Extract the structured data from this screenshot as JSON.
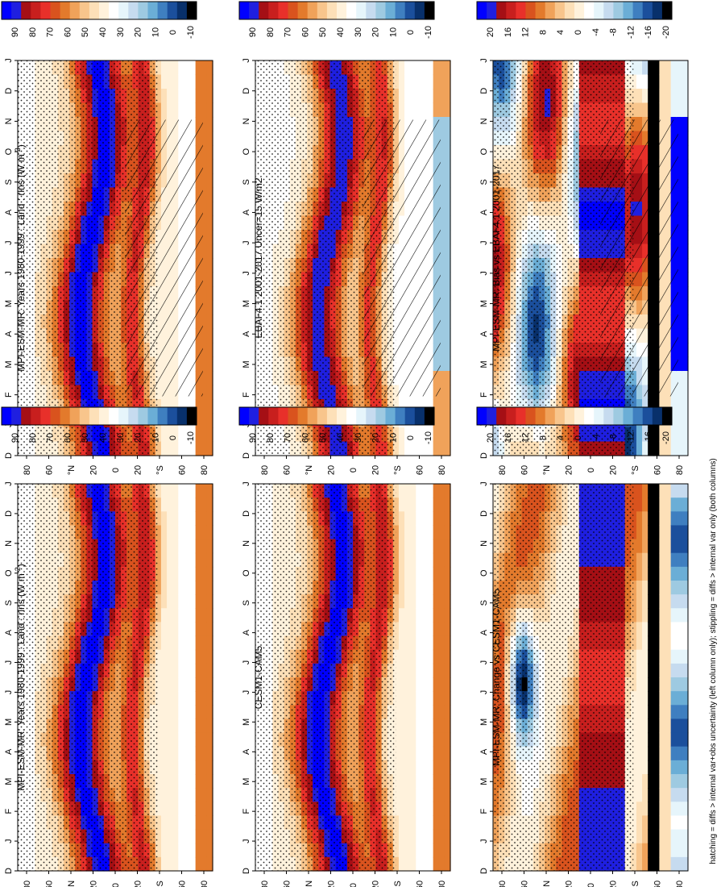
{
  "figure": {
    "footnote": "hatching = diffs > internal var+obs uncertainty (left column only); stippling = diffs > internal var only (both columns)",
    "latitude_axis": {
      "ticks": [
        "80",
        "60",
        "°N",
        "20",
        "0",
        "20",
        "°S",
        "60",
        "80"
      ],
      "values": [
        80,
        60,
        40,
        20,
        0,
        -20,
        -40,
        -60,
        -80
      ]
    },
    "month_axis": {
      "ticks": [
        "D",
        "J",
        "F",
        "M",
        "A",
        "M",
        "J",
        "J",
        "A",
        "S",
        "O",
        "N",
        "D",
        "J"
      ]
    }
  },
  "colors": {
    "absolute_scale": [
      "#000000",
      "#08306b",
      "#1b4f9c",
      "#3f7fc0",
      "#6baed6",
      "#9ecae1",
      "#c6dbef",
      "#e6f5fb",
      "#ffffff",
      "#fff2dc",
      "#fde0b8",
      "#f8c58c",
      "#f0a25a",
      "#e37a2c",
      "#d9531e",
      "#e8302a",
      "#c81f1e",
      "#a50f15",
      "#1f1fe0",
      "#0000ff"
    ],
    "difference_scale": [
      "#000000",
      "#08306b",
      "#1b4f9c",
      "#3f7fc0",
      "#6baed6",
      "#9ecae1",
      "#c6dbef",
      "#e6f5fb",
      "#ffffff",
      "#fff2dc",
      "#fde0b8",
      "#f8c58c",
      "#f0a25a",
      "#e37a2c",
      "#d9531e",
      "#e8302a",
      "#c81f1e",
      "#a50f15",
      "#1f1fe0",
      "#0000ff"
    ]
  },
  "chart_data": [
    {
      "id": "mpi_left",
      "type": "heatmap",
      "title": "MPI-ESM-MR: Years 1980-1999 : Land : rlns (W m",
      "title_superscript": "-2",
      "title_suffix": ")",
      "colorbar": {
        "labels": [
          "90",
          "80",
          "70",
          "60",
          "50",
          "40",
          "30",
          "20",
          "10",
          "0",
          "-10"
        ],
        "range": [
          -10,
          100
        ]
      },
      "field": "absolute",
      "hatching": true
    },
    {
      "id": "mpi_right",
      "type": "heatmap",
      "title": "MPI-ESM-MR: Years 1980-1999 : Land : rlns (W m",
      "title_superscript": "-2",
      "title_suffix": ")",
      "colorbar": {
        "labels": [
          "90",
          "80",
          "70",
          "60",
          "50",
          "40",
          "30",
          "20",
          "10",
          "0",
          "-10"
        ],
        "range": [
          -10,
          100
        ]
      },
      "field": "absolute",
      "hatching": false
    },
    {
      "id": "ebaf",
      "type": "heatmap",
      "title": "EBAF4.1 2001-2017 Uncer=15 W/m2",
      "colorbar": {
        "labels": [
          "90",
          "80",
          "70",
          "60",
          "50",
          "40",
          "30",
          "20",
          "10",
          "0",
          "-10"
        ],
        "range": [
          -10,
          100
        ]
      },
      "field": "absolute_obs",
      "hatching": true
    },
    {
      "id": "cesm",
      "type": "heatmap",
      "title": "CESM1-CAM5",
      "colorbar": {
        "labels": [
          "90",
          "80",
          "70",
          "60",
          "50",
          "40",
          "30",
          "20",
          "10",
          "0",
          "-10"
        ],
        "range": [
          -10,
          100
        ]
      },
      "field": "absolute",
      "hatching": false
    },
    {
      "id": "bias",
      "type": "heatmap",
      "title": "MPI-ESM-MR: Bias vs EBAF4.1 2001-2017",
      "colorbar": {
        "labels": [
          "20",
          "16",
          "12",
          "8",
          "4",
          "0",
          "-4",
          "-8",
          "-12",
          "-16",
          "-20"
        ],
        "range": [
          -22,
          22
        ]
      },
      "field": "bias",
      "hatching": true
    },
    {
      "id": "change",
      "type": "heatmap",
      "title": "MPI-ESM-MR: Change vs CESM1-CAM5",
      "colorbar": {
        "labels": [
          "20",
          "16",
          "12",
          "8",
          "4",
          "0",
          "-4",
          "-8",
          "-12",
          "-16",
          "-20"
        ],
        "range": [
          -22,
          22
        ]
      },
      "field": "change",
      "hatching": false
    }
  ]
}
